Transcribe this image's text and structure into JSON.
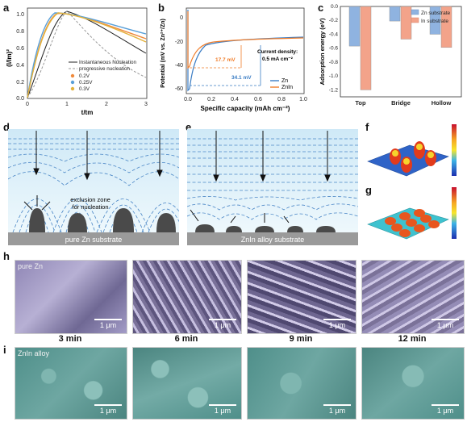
{
  "panels": {
    "a": "a",
    "b": "b",
    "c": "c",
    "d": "d",
    "e": "e",
    "f": "f",
    "g": "g",
    "h": "h",
    "i": "i"
  },
  "panel_a": {
    "ylabel": "(I/Im)²",
    "xlabel": "t/tm",
    "yticks": [
      "0.0",
      "0.2",
      "0.4",
      "0.6",
      "0.8",
      "1.0"
    ],
    "xticks": [
      "0",
      "1",
      "2",
      "3"
    ],
    "legend": [
      "Instantaneous Nucleation",
      "progressive nucleation",
      "0.2V",
      "0.25V",
      "0.3V"
    ],
    "colors": {
      "0.2V": "#f08a3c",
      "0.25V": "#5aa0d8",
      "0.3V": "#e3b23c"
    }
  },
  "panel_b": {
    "ylabel": "Potential (mV vs. Zn²⁺/Zn)",
    "xlabel": "Specific capacity (mAh cm⁻²)",
    "yticks": [
      "0",
      "-20",
      "-40",
      "-60"
    ],
    "xticks": [
      "0.0",
      "0.2",
      "0.4",
      "0.6",
      "0.8",
      "1.0"
    ],
    "annot_orange": "17.7 mV",
    "annot_blue": "34.1 mV",
    "density_label": "Current density:",
    "density_value": "0.5 mA cm⁻²",
    "legend": [
      "Zn",
      "ZnIn"
    ],
    "colors": {
      "Zn": "#3b7dc4",
      "ZnIn": "#f07d2a"
    }
  },
  "chart_data": {
    "type": "bar",
    "ylabel": "Adsorption energy (eV)",
    "categories": [
      "Top",
      "Bridge",
      "Hollow"
    ],
    "yticks": [
      "0.0",
      "-0.2",
      "-0.4",
      "-0.6",
      "-0.8",
      "-1.0",
      "-1.2"
    ],
    "ylim": [
      0,
      -1.3
    ],
    "series": [
      {
        "name": "Zn substrate",
        "values": [
          -0.57,
          -0.21,
          -0.4
        ],
        "color": "#8fb3e0"
      },
      {
        "name": "In substrate",
        "values": [
          -1.2,
          -0.47,
          -0.59
        ],
        "color": "#f3a38a"
      }
    ]
  },
  "panel_d": {
    "zone_label_1": "exclusion zone",
    "zone_label_2": "for nucleation",
    "substrate": "pure Zn substrate"
  },
  "panel_e": {
    "substrate": "ZnIn alloy substrate"
  },
  "sem": {
    "h_label": "pure Zn",
    "i_label": "ZnIn alloy",
    "scale": "1 μm",
    "times": [
      "3 min",
      "6 min",
      "9 min",
      "12 min"
    ]
  }
}
